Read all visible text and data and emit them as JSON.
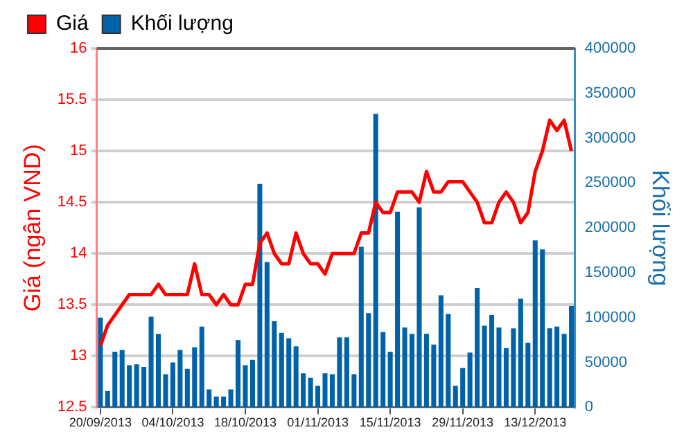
{
  "chart_data": {
    "type": "bar",
    "ylabel": "Giá (ngân VND)",
    "y2label": "Khối lượng",
    "categories": [
      "20/09/2013",
      null,
      null,
      null,
      null,
      null,
      null,
      null,
      null,
      null,
      "04/10/2013",
      null,
      null,
      null,
      null,
      null,
      null,
      null,
      null,
      null,
      "18/10/2013",
      null,
      null,
      null,
      null,
      null,
      null,
      null,
      null,
      null,
      "01/11/2013",
      null,
      null,
      null,
      null,
      null,
      null,
      null,
      null,
      null,
      "15/11/2013",
      null,
      null,
      null,
      null,
      null,
      null,
      null,
      null,
      null,
      "29/11/2013",
      null,
      null,
      null,
      null,
      null,
      null,
      null,
      null,
      null,
      "13/12/2013",
      null,
      null,
      null,
      null,
      null
    ],
    "series": [
      {
        "name": "Giá",
        "type": "line",
        "axis": "y",
        "color": "#ff0000",
        "values": [
          13.1,
          13.3,
          13.4,
          13.5,
          13.6,
          13.6,
          13.6,
          13.6,
          13.7,
          13.6,
          13.6,
          13.6,
          13.6,
          13.9,
          13.6,
          13.6,
          13.5,
          13.6,
          13.5,
          13.5,
          13.7,
          13.7,
          14.1,
          14.2,
          14.0,
          13.9,
          13.9,
          14.2,
          14.0,
          13.9,
          13.9,
          13.8,
          14.0,
          14.0,
          14.0,
          14.0,
          14.2,
          14.2,
          14.5,
          14.4,
          14.4,
          14.6,
          14.6,
          14.6,
          14.5,
          14.8,
          14.6,
          14.6,
          14.7,
          14.7,
          14.7,
          14.6,
          14.5,
          14.3,
          14.3,
          14.5,
          14.6,
          14.5,
          14.3,
          14.4,
          14.8,
          15.0,
          15.3,
          15.2,
          15.3,
          15.0
        ]
      },
      {
        "name": "Khối lượng",
        "axis": "y2",
        "color": "#0062a8",
        "values": [
          100000,
          18000,
          62000,
          64000,
          47000,
          48000,
          45000,
          101000,
          82000,
          37000,
          50000,
          64000,
          43000,
          67000,
          90000,
          20000,
          12000,
          12000,
          20000,
          75000,
          47000,
          53000,
          249000,
          162000,
          96000,
          83000,
          77000,
          68000,
          38000,
          33000,
          24000,
          38000,
          37000,
          78000,
          78000,
          37000,
          179000,
          105000,
          327000,
          84000,
          62000,
          218000,
          89000,
          82000,
          223000,
          82000,
          70000,
          125000,
          104000,
          24000,
          44000,
          61000,
          133000,
          91000,
          103000,
          89000,
          66000,
          88000,
          121000,
          72000,
          186000,
          176000,
          88000,
          90000,
          82000,
          113000
        ]
      }
    ],
    "ylim": [
      12.5,
      16
    ],
    "yticks": [
      12.5,
      13,
      13.5,
      14,
      14.5,
      15,
      15.5,
      16
    ],
    "y2lim": [
      0,
      400000
    ],
    "y2ticks": [
      0,
      50000,
      100000,
      150000,
      200000,
      250000,
      300000,
      350000,
      400000
    ],
    "grid": "y",
    "legend": "top left",
    "marker": "none",
    "line_style": "solid"
  }
}
